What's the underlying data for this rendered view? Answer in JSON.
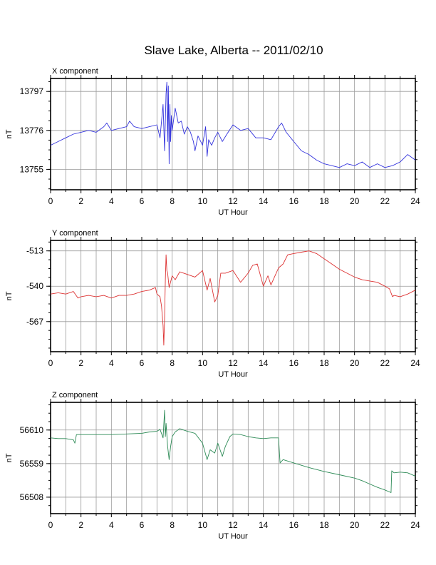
{
  "page_title": "Slave Lake, Alberta -- 2011/02/10",
  "chart_data": [
    {
      "type": "line",
      "title": "X component",
      "xlabel": "UT Hour",
      "ylabel": "nT",
      "xlim": [
        0,
        24
      ],
      "ylim": [
        13744,
        13804
      ],
      "xticks": [
        0,
        2,
        4,
        6,
        8,
        10,
        12,
        14,
        16,
        18,
        20,
        22,
        24
      ],
      "yticks": [
        13755,
        13776,
        13797
      ],
      "grid": true,
      "color": "#3333dd",
      "series": [
        {
          "x": [
            0,
            0.5,
            1,
            1.5,
            2,
            2.5,
            3,
            3.5,
            3.7,
            4,
            4.5,
            5,
            5.2,
            5.5,
            6,
            6.5,
            7,
            7.2,
            7.4,
            7.5,
            7.6,
            7.65,
            7.7,
            7.75,
            7.8,
            7.85,
            7.9,
            7.95,
            8,
            8.2,
            8.4,
            8.6,
            8.8,
            9,
            9.2,
            9.4,
            9.5,
            9.7,
            10,
            10.2,
            10.3,
            10.4,
            10.6,
            10.8,
            11,
            11.3,
            11.6,
            12,
            12.5,
            13,
            13.5,
            14,
            14.5,
            15,
            15.2,
            15.5,
            16,
            16.5,
            17,
            17.5,
            18,
            18.5,
            19,
            19.5,
            20,
            20.5,
            21,
            21.5,
            22,
            22.5,
            23,
            23.5,
            24
          ],
          "y": [
            13768,
            13770,
            13772,
            13774,
            13775,
            13776,
            13775,
            13778,
            13780,
            13776,
            13777,
            13778,
            13781,
            13778,
            13777,
            13778,
            13779,
            13772,
            13790,
            13765,
            13796,
            13802,
            13770,
            13800,
            13758,
            13790,
            13770,
            13784,
            13776,
            13788,
            13780,
            13781,
            13774,
            13778,
            13775,
            13770,
            13765,
            13773,
            13768,
            13778,
            13762,
            13771,
            13768,
            13772,
            13775,
            13770,
            13774,
            13779,
            13776,
            13777,
            13772,
            13772,
            13771,
            13778,
            13780,
            13775,
            13770,
            13765,
            13763,
            13760,
            13758,
            13757,
            13756,
            13758,
            13757,
            13759,
            13756,
            13758,
            13756,
            13757,
            13759,
            13763,
            13760
          ]
        }
      ]
    },
    {
      "type": "line",
      "title": "Y component",
      "xlabel": "UT Hour",
      "ylabel": "nT",
      "xlim": [
        0,
        24
      ],
      "ylim": [
        -590,
        -505
      ],
      "xticks": [
        0,
        2,
        4,
        6,
        8,
        10,
        12,
        14,
        16,
        18,
        20,
        22,
        24
      ],
      "yticks": [
        -567,
        -540,
        -513
      ],
      "grid": true,
      "color": "#dd3333",
      "series": [
        {
          "x": [
            0,
            0.5,
            1,
            1.5,
            1.8,
            2,
            2.5,
            3,
            3.5,
            4,
            4.5,
            5,
            5.5,
            6,
            6.5,
            6.9,
            7,
            7.2,
            7.3,
            7.4,
            7.45,
            7.5,
            7.55,
            7.6,
            7.65,
            7.7,
            7.8,
            8,
            8.2,
            8.5,
            9,
            9.5,
            10,
            10.3,
            10.5,
            10.8,
            11,
            11.2,
            11.5,
            12,
            12.5,
            13,
            13.3,
            13.6,
            14,
            14.3,
            14.5,
            15,
            15.3,
            15.6,
            16,
            16.5,
            17,
            17.5,
            18,
            18.5,
            19,
            19.5,
            20,
            20.5,
            21,
            21.5,
            22,
            22.3,
            22.5,
            22.6,
            23,
            23.5,
            24
          ],
          "y": [
            -546,
            -545,
            -546,
            -544,
            -549,
            -548,
            -547,
            -548,
            -547,
            -549,
            -547,
            -547,
            -546,
            -544,
            -543,
            -541,
            -546,
            -548,
            -555,
            -570,
            -585,
            -565,
            -535,
            -516,
            -528,
            -530,
            -541,
            -532,
            -535,
            -529,
            -531,
            -533,
            -528,
            -543,
            -534,
            -552,
            -547,
            -530,
            -530,
            -528,
            -537,
            -530,
            -524,
            -523,
            -540,
            -532,
            -539,
            -526,
            -523,
            -516,
            -515,
            -514,
            -513,
            -515,
            -519,
            -523,
            -527,
            -530,
            -533,
            -535,
            -536,
            -537,
            -540,
            -542,
            -548,
            -547,
            -548,
            -546,
            -543
          ]
        }
      ]
    },
    {
      "type": "line",
      "title": "Z component",
      "xlabel": "UT Hour",
      "ylabel": "nT",
      "xlim": [
        0,
        24
      ],
      "ylim": [
        56483,
        56652
      ],
      "xticks": [
        0,
        2,
        4,
        6,
        8,
        10,
        12,
        14,
        16,
        18,
        20,
        22,
        24
      ],
      "yticks": [
        56508,
        56559,
        56610
      ],
      "grid": true,
      "color": "#2e8b57",
      "series": [
        {
          "x": [
            0,
            0.5,
            1,
            1.5,
            1.6,
            1.7,
            2,
            3,
            4,
            5,
            6,
            6.5,
            7,
            7.2,
            7.4,
            7.5,
            7.55,
            7.6,
            7.7,
            7.8,
            7.9,
            8,
            8.2,
            8.5,
            9,
            9.5,
            10,
            10.3,
            10.5,
            10.8,
            11,
            11.3,
            11.5,
            11.8,
            12,
            12.5,
            13,
            13.5,
            14,
            14.5,
            15,
            15.1,
            15.3,
            16,
            17,
            18,
            19,
            20,
            20.5,
            21,
            21.5,
            22,
            22.4,
            22.45,
            22.6,
            23,
            23.5,
            24
          ],
          "y": [
            56598,
            56597,
            56597,
            56595,
            56590,
            56603,
            56603,
            56603,
            56603,
            56604,
            56605,
            56607,
            56608,
            56611,
            56598,
            56640,
            56600,
            56620,
            56585,
            56565,
            56585,
            56600,
            56607,
            56612,
            56608,
            56605,
            56590,
            56565,
            56580,
            56575,
            56590,
            56570,
            56585,
            56600,
            56604,
            56603,
            56600,
            56598,
            56597,
            56598,
            56598,
            56560,
            56565,
            56560,
            56553,
            56547,
            56542,
            56537,
            56533,
            56528,
            56523,
            56519,
            56515,
            56548,
            56545,
            56546,
            56545,
            56540
          ]
        }
      ]
    }
  ]
}
